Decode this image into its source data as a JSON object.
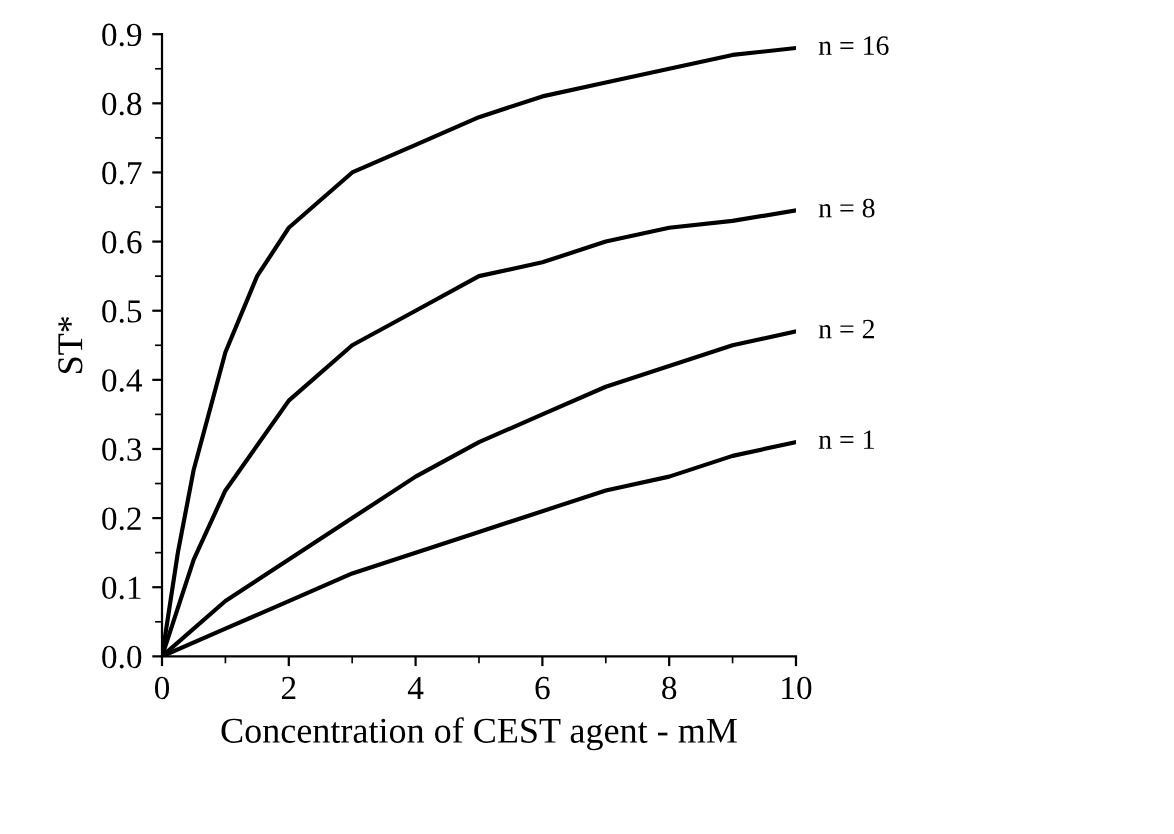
{
  "chart_data": {
    "type": "line",
    "xlabel": "Concentration of CEST agent - mM",
    "ylabel": "ST*",
    "xlim": [
      0,
      10
    ],
    "ylim": [
      0,
      0.9
    ],
    "xticks": [
      0,
      2,
      4,
      6,
      8,
      10
    ],
    "yticks": [
      {
        "value": 0,
        "label": "0.0"
      },
      0.1,
      0.2,
      0.3,
      0.4,
      0.5,
      0.6,
      0.7,
      0.8,
      0.9
    ],
    "grid": false,
    "legend": false,
    "marker": "none",
    "line_style": "solid",
    "series": [
      {
        "name": "n = 16",
        "color": "#000000",
        "x": [
          0,
          0.25,
          0.5,
          1,
          1.5,
          2,
          3,
          4,
          5,
          6,
          7,
          8,
          9,
          10
        ],
        "values": [
          0,
          0.15,
          0.27,
          0.44,
          0.55,
          0.62,
          0.7,
          0.74,
          0.78,
          0.81,
          0.83,
          0.85,
          0.87,
          0.88
        ]
      },
      {
        "name": "n = 8",
        "color": "#000000",
        "x": [
          0,
          0.5,
          1,
          2,
          3,
          4,
          5,
          6,
          7,
          8,
          9,
          10
        ],
        "values": [
          0,
          0.14,
          0.24,
          0.37,
          0.45,
          0.5,
          0.55,
          0.57,
          0.6,
          0.62,
          0.63,
          0.645
        ]
      },
      {
        "name": "n = 2",
        "color": "#000000",
        "x": [
          0,
          1,
          2,
          3,
          4,
          5,
          6,
          7,
          8,
          9,
          10
        ],
        "values": [
          0,
          0.08,
          0.14,
          0.2,
          0.26,
          0.31,
          0.35,
          0.39,
          0.42,
          0.45,
          0.47
        ]
      },
      {
        "name": "n = 1",
        "color": "#000000",
        "x": [
          0,
          1,
          2,
          3,
          4,
          5,
          6,
          7,
          8,
          9,
          10
        ],
        "values": [
          0,
          0.04,
          0.08,
          0.12,
          0.15,
          0.18,
          0.21,
          0.24,
          0.26,
          0.29,
          0.31
        ]
      }
    ]
  }
}
